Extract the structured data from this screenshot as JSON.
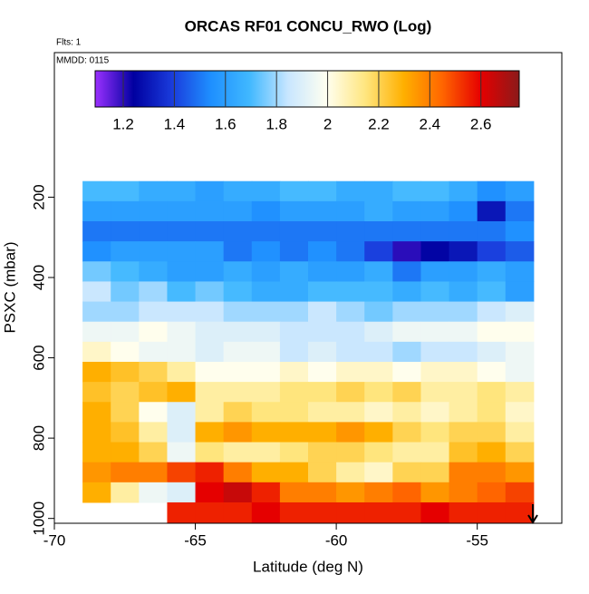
{
  "chart_data": {
    "type": "heatmap",
    "title": "ORCAS RF01 CONCU_RWO (Log)",
    "annotations": [
      "Flts: 1",
      "MMDD: 0115"
    ],
    "xlabel": "Latitude (deg N)",
    "ylabel": "PSXC (mbar)",
    "xlim": [
      -70,
      -52
    ],
    "xticks": [
      -70,
      -65,
      -60,
      -55
    ],
    "ylim": [
      1012,
      -160
    ],
    "yticks": [
      200,
      400,
      600,
      800,
      1000
    ],
    "x": [
      -68.5,
      -67.5,
      -66.5,
      -65.5,
      -64.5,
      -63.5,
      -62.5,
      -61.5,
      -60.5,
      -59.5,
      -58.5,
      -57.5,
      -56.5,
      -55.5,
      -54.5,
      -53.5
    ],
    "y": [
      185,
      235,
      285,
      335,
      385,
      435,
      485,
      535,
      585,
      635,
      685,
      735,
      785,
      835,
      885,
      935,
      985
    ],
    "z": [
      [
        1.7,
        1.7,
        1.65,
        1.65,
        1.6,
        1.65,
        1.65,
        1.7,
        1.7,
        1.65,
        1.65,
        1.7,
        1.7,
        1.65,
        1.55,
        1.6
      ],
      [
        1.6,
        1.6,
        1.6,
        1.6,
        1.6,
        1.6,
        1.55,
        1.6,
        1.6,
        1.6,
        1.65,
        1.6,
        1.6,
        1.55,
        1.3,
        1.5
      ],
      [
        1.5,
        1.5,
        1.5,
        1.5,
        1.5,
        1.5,
        1.5,
        1.5,
        1.5,
        1.5,
        1.5,
        1.5,
        1.5,
        1.5,
        1.5,
        1.55
      ],
      [
        1.55,
        1.6,
        1.6,
        1.6,
        1.6,
        1.5,
        1.55,
        1.5,
        1.55,
        1.5,
        1.4,
        1.2,
        1.25,
        1.3,
        1.4,
        1.45
      ],
      [
        1.75,
        1.7,
        1.65,
        1.6,
        1.6,
        1.65,
        1.6,
        1.65,
        1.6,
        1.6,
        1.65,
        1.5,
        1.6,
        1.6,
        1.65,
        1.6
      ],
      [
        1.85,
        1.75,
        1.8,
        1.7,
        1.75,
        1.7,
        1.65,
        1.65,
        1.7,
        1.7,
        1.7,
        1.65,
        1.7,
        1.65,
        1.7,
        1.6
      ],
      [
        1.8,
        1.8,
        1.85,
        1.85,
        1.85,
        1.8,
        1.8,
        1.8,
        1.85,
        1.8,
        1.75,
        1.8,
        1.8,
        1.8,
        1.85,
        1.9
      ],
      [
        1.95,
        1.95,
        2.0,
        1.95,
        1.9,
        1.9,
        1.9,
        1.85,
        1.85,
        1.85,
        1.9,
        1.95,
        1.95,
        1.95,
        2.0,
        2.0
      ],
      [
        2.05,
        2.0,
        1.95,
        1.95,
        1.9,
        1.95,
        1.95,
        1.85,
        1.9,
        1.85,
        1.85,
        1.8,
        1.85,
        1.85,
        1.9,
        1.95
      ],
      [
        2.3,
        2.25,
        2.2,
        2.1,
        2.0,
        2.0,
        2.0,
        2.05,
        2.0,
        2.05,
        2.05,
        2.0,
        2.05,
        2.05,
        2.0,
        1.95
      ],
      [
        2.25,
        2.2,
        2.25,
        2.3,
        2.1,
        2.1,
        2.1,
        2.15,
        2.15,
        2.2,
        2.15,
        2.2,
        2.1,
        2.1,
        2.15,
        2.1
      ],
      [
        2.3,
        2.2,
        2.0,
        1.9,
        2.1,
        2.2,
        2.15,
        2.15,
        2.1,
        2.1,
        2.05,
        2.1,
        2.05,
        2.1,
        2.15,
        2.05
      ],
      [
        2.3,
        2.25,
        2.1,
        1.9,
        2.3,
        2.35,
        2.3,
        2.3,
        2.3,
        2.35,
        2.3,
        2.2,
        2.15,
        2.2,
        2.2,
        2.1
      ],
      [
        2.3,
        2.3,
        2.2,
        1.95,
        2.15,
        2.1,
        2.1,
        2.15,
        2.2,
        2.2,
        2.15,
        2.1,
        2.1,
        2.25,
        2.3,
        2.2
      ],
      [
        2.35,
        2.4,
        2.4,
        2.5,
        2.55,
        2.4,
        2.3,
        2.3,
        2.2,
        2.1,
        2.05,
        2.2,
        2.2,
        2.4,
        2.4,
        2.35
      ],
      [
        2.3,
        2.1,
        1.95,
        1.9,
        2.6,
        2.65,
        2.55,
        2.4,
        2.4,
        2.35,
        2.4,
        2.45,
        2.35,
        2.4,
        2.45,
        2.5
      ],
      [
        null,
        null,
        null,
        2.55,
        2.55,
        2.55,
        2.6,
        2.55,
        2.55,
        2.55,
        2.55,
        2.55,
        2.6,
        2.55,
        2.55,
        2.55
      ]
    ],
    "clim": [
      1.09,
      2.75
    ],
    "cticks": [
      1.2,
      1.4,
      1.6,
      1.8,
      2.0,
      2.2,
      2.4,
      2.6
    ],
    "colors": [
      "#9b30ff",
      "#0000a0",
      "#1a3cdc",
      "#1e8fff",
      "#40b8ff",
      "#c8e6ff",
      "#fffff0",
      "#ffe680",
      "#ffb000",
      "#ff6600",
      "#e60000",
      "#8b1a1a"
    ]
  }
}
